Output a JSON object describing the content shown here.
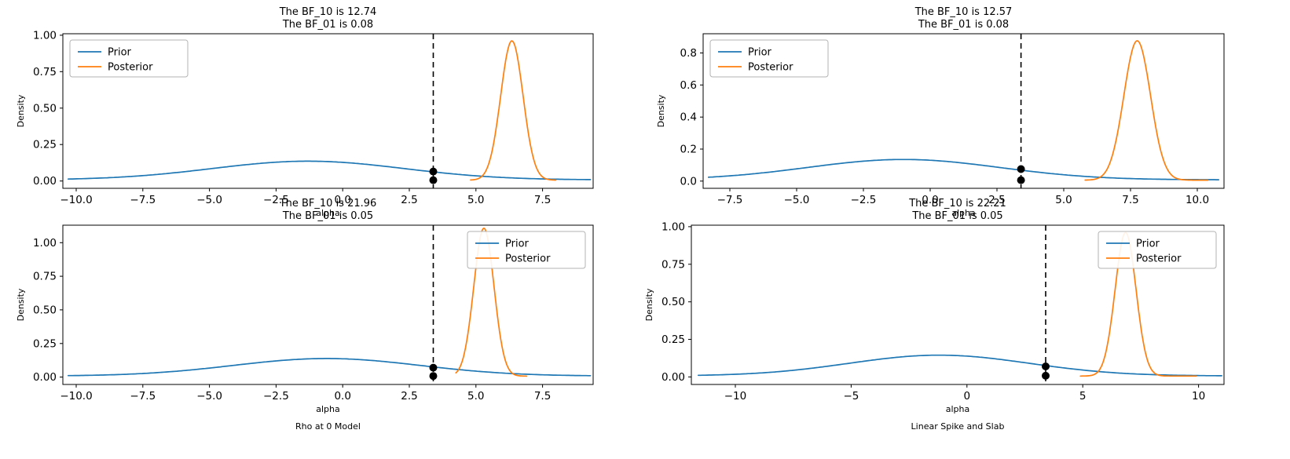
{
  "figure": {
    "background": "#ffffff",
    "colors": {
      "prior": "#1f77b4",
      "posterior": "#ff7f0e",
      "marker": "#000000",
      "axes": "#000000"
    }
  },
  "chart_data": [
    {
      "id": "top-left",
      "type": "line",
      "title_line1": "The BF_10 is 12.74",
      "title_line2": "The BF_01 is 0.08",
      "xlabel": "alpha",
      "ylabel": "Density",
      "xlim": [
        -10.5,
        9.4
      ],
      "ylim": [
        -0.05,
        1.01
      ],
      "xticks": [
        -10.0,
        -7.5,
        -5.0,
        -2.5,
        0.0,
        2.5,
        5.0,
        7.5
      ],
      "xtick_labels": [
        "−10.0",
        "−7.5",
        "−5.0",
        "−2.5",
        "0.0",
        "2.5",
        "5.0",
        "7.5"
      ],
      "yticks": [
        0.0,
        0.25,
        0.5,
        0.75,
        1.0
      ],
      "ytick_labels": [
        "0.00",
        "0.25",
        "0.50",
        "0.75",
        "1.00"
      ],
      "legend_loc": "nw",
      "grid": false,
      "series": [
        {
          "name": "Prior",
          "color_key": "prior",
          "shape": "gaussian",
          "mean": -1.3,
          "sd": 3.6,
          "peak": 0.128,
          "baseline": 0.008,
          "range": [
            -10.3,
            9.3
          ]
        },
        {
          "name": "Posterior",
          "color_key": "posterior",
          "shape": "gaussian",
          "mean": 6.35,
          "sd": 0.42,
          "peak": 0.955,
          "baseline": 0.006,
          "range": [
            4.8,
            8.0
          ]
        }
      ],
      "marker_line_x": 3.4,
      "marker_points": [
        {
          "x": 3.4,
          "y": 0.065
        },
        {
          "x": 3.4,
          "y": 0.006
        }
      ]
    },
    {
      "id": "top-right",
      "type": "line",
      "title_line1": "The BF_10 is 12.57",
      "title_line2": "The BF_01 is 0.08",
      "xlabel": "alpha",
      "ylabel": "Density",
      "xlim": [
        -8.5,
        11.0
      ],
      "ylim": [
        -0.045,
        0.92
      ],
      "xticks": [
        -7.5,
        -5.0,
        -2.5,
        0.0,
        2.5,
        5.0,
        7.5,
        10.0
      ],
      "xtick_labels": [
        "−7.5",
        "−5.0",
        "−2.5",
        "0.0",
        "2.5",
        "5.0",
        "7.5",
        "10.0"
      ],
      "yticks": [
        0.0,
        0.2,
        0.4,
        0.6,
        0.8
      ],
      "ytick_labels": [
        "0.0",
        "0.2",
        "0.4",
        "0.6",
        "0.8"
      ],
      "legend_loc": "nw",
      "grid": false,
      "series": [
        {
          "name": "Prior",
          "color_key": "prior",
          "shape": "gaussian",
          "mean": -1.0,
          "sd": 3.6,
          "peak": 0.127,
          "baseline": 0.008,
          "range": [
            -8.3,
            10.8
          ]
        },
        {
          "name": "Posterior",
          "color_key": "posterior",
          "shape": "gaussian",
          "mean": 7.75,
          "sd": 0.5,
          "peak": 0.87,
          "baseline": 0.006,
          "range": [
            5.8,
            10.4
          ]
        }
      ],
      "marker_line_x": 3.4,
      "marker_points": [
        {
          "x": 3.4,
          "y": 0.075
        },
        {
          "x": 3.4,
          "y": 0.006
        }
      ]
    },
    {
      "id": "bottom-left",
      "type": "line",
      "title_line1": "The BF_10 is 21.96",
      "title_line2": "The BF_01 is 0.05",
      "xlabel": "alpha",
      "ylabel": "Density",
      "footer": "Rho at 0 Model",
      "xlim": [
        -10.5,
        9.4
      ],
      "ylim": [
        -0.055,
        1.13
      ],
      "xticks": [
        -10.0,
        -7.5,
        -5.0,
        -2.5,
        0.0,
        2.5,
        5.0,
        7.5
      ],
      "xtick_labels": [
        "−10.0",
        "−7.5",
        "−5.0",
        "−2.5",
        "0.0",
        "2.5",
        "5.0",
        "7.5"
      ],
      "yticks": [
        0.0,
        0.25,
        0.5,
        0.75,
        1.0
      ],
      "ytick_labels": [
        "0.00",
        "0.25",
        "0.50",
        "0.75",
        "1.00"
      ],
      "legend_loc": "ne",
      "grid": false,
      "series": [
        {
          "name": "Prior",
          "color_key": "prior",
          "shape": "gaussian",
          "mean": -0.6,
          "sd": 3.5,
          "peak": 0.13,
          "baseline": 0.008,
          "range": [
            -10.3,
            9.3
          ]
        },
        {
          "name": "Posterior",
          "color_key": "posterior",
          "shape": "gaussian",
          "mean": 5.3,
          "sd": 0.38,
          "peak": 1.1,
          "baseline": 0.007,
          "range": [
            4.25,
            6.9
          ]
        }
      ],
      "marker_line_x": 3.4,
      "marker_points": [
        {
          "x": 3.4,
          "y": 0.07
        },
        {
          "x": 3.4,
          "y": 0.008
        }
      ]
    },
    {
      "id": "bottom-right",
      "type": "line",
      "title_line1": "The BF_10 is 22.21",
      "title_line2": "The BF_01 is 0.05",
      "xlabel": "alpha",
      "ylabel": "Density",
      "footer": "Linear Spike and Slab",
      "xlim": [
        -11.9,
        11.1
      ],
      "ylim": [
        -0.05,
        1.01
      ],
      "xticks": [
        -10,
        -5,
        0,
        5,
        10
      ],
      "xtick_labels": [
        "−10",
        "−5",
        "0",
        "5",
        "10"
      ],
      "yticks": [
        0.0,
        0.25,
        0.5,
        0.75,
        1.0
      ],
      "ytick_labels": [
        "0.00",
        "0.25",
        "0.50",
        "0.75",
        "1.00"
      ],
      "legend_loc": "ne",
      "grid": false,
      "series": [
        {
          "name": "Prior",
          "color_key": "prior",
          "shape": "gaussian",
          "mean": -1.2,
          "sd": 3.9,
          "peak": 0.138,
          "baseline": 0.007,
          "range": [
            -11.6,
            11.0
          ]
        },
        {
          "name": "Posterior",
          "color_key": "posterior",
          "shape": "gaussian",
          "mean": 6.85,
          "sd": 0.45,
          "peak": 0.955,
          "baseline": 0.006,
          "range": [
            4.9,
            9.9
          ]
        }
      ],
      "marker_line_x": 3.4,
      "marker_points": [
        {
          "x": 3.4,
          "y": 0.07
        },
        {
          "x": 3.4,
          "y": 0.008
        }
      ]
    }
  ]
}
